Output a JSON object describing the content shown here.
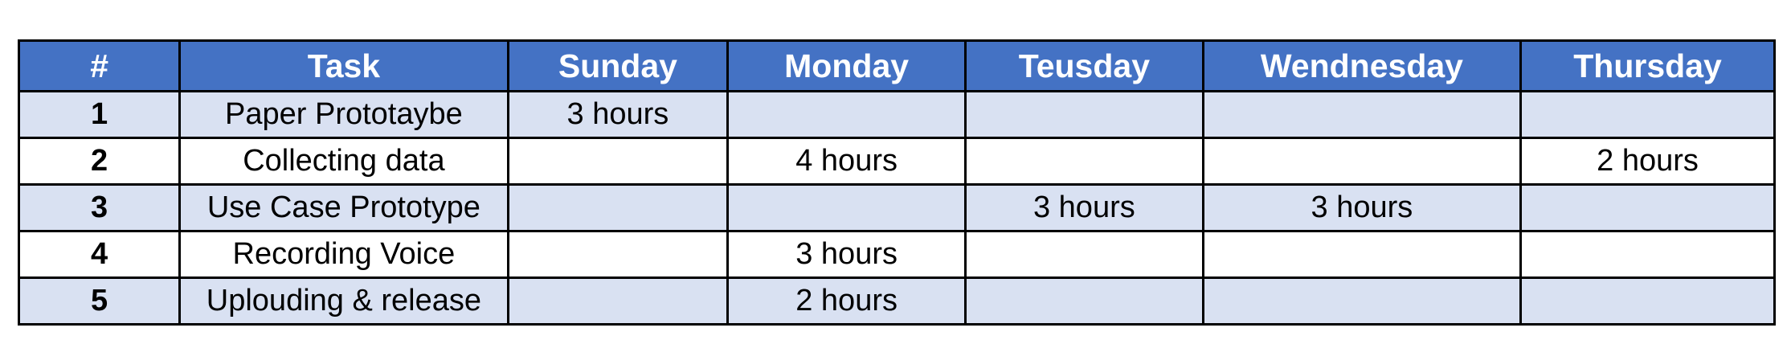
{
  "table": {
    "headers": [
      "#",
      "Task",
      "Sunday",
      "Monday",
      "Teusday",
      "Wendnesday",
      "Thursday"
    ],
    "rows": [
      [
        "1",
        "Paper Prototaybe",
        "3 hours",
        "",
        "",
        "",
        ""
      ],
      [
        "2",
        "Collecting data",
        "",
        "4 hours",
        "",
        "",
        "2 hours"
      ],
      [
        "3",
        "Use Case Prototype",
        "",
        "",
        "3 hours",
        "3 hours",
        ""
      ],
      [
        "4",
        "Recording Voice",
        "",
        "3 hours",
        "",
        "",
        ""
      ],
      [
        "5",
        "Uplouding & release",
        "",
        "2 hours",
        "",
        "",
        ""
      ]
    ]
  },
  "colors": {
    "header_background": "#4472c4",
    "header_text": "#ffffff",
    "band_row_background": "#d9e1f2",
    "plain_row_background": "#ffffff",
    "border": "#000000"
  }
}
